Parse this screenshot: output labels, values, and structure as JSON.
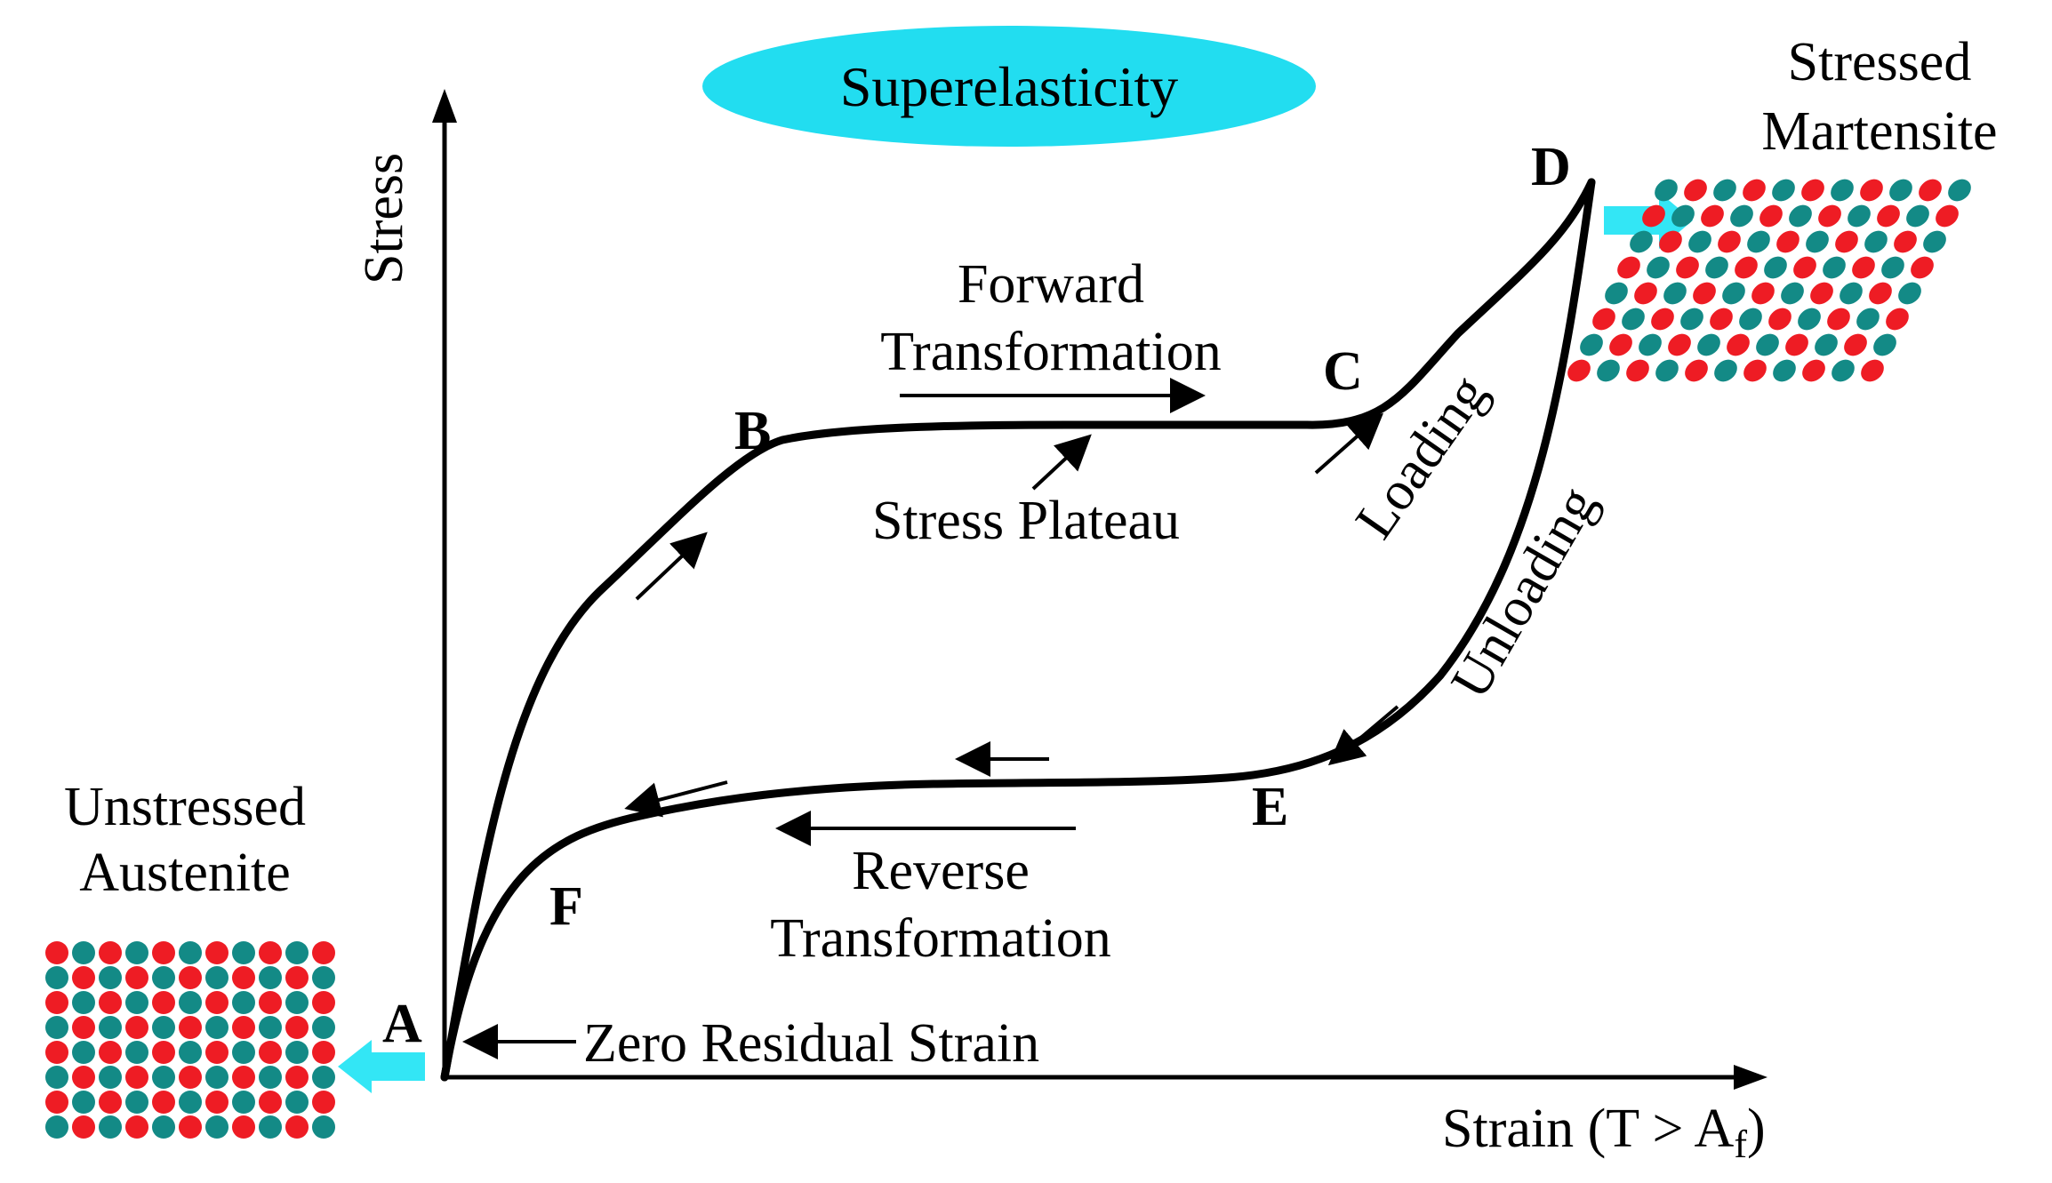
{
  "title": "Superelasticity",
  "axes": {
    "y_label": "Stress",
    "x_label_main": "Strain (T > A",
    "x_label_sub": "f",
    "x_label_close": ")"
  },
  "points": {
    "A": "A",
    "B": "B",
    "C": "C",
    "D": "D",
    "E": "E",
    "F": "F"
  },
  "labels": {
    "forward_line1": "Forward",
    "forward_line2": "Transformation",
    "stress_plateau": "Stress Plateau",
    "loading": "Loading",
    "unloading": "Unloading",
    "reverse_line1": "Reverse",
    "reverse_line2": "Transformation",
    "zero_residual": "Zero Residual Strain",
    "unstressed_line1": "Unstressed",
    "unstressed_line2": "Austenite",
    "stressed_line1": "Stressed",
    "stressed_line2": "Martensite"
  },
  "colors": {
    "title_ellipse": "#22ddf0",
    "cyan_arrow": "#33e6f5",
    "atom_red": "#ee1c24",
    "atom_teal": "#138a86",
    "curve": "#000000"
  },
  "lattices": {
    "austenite": {
      "rows": 8,
      "cols": 11
    },
    "martensite": {
      "rows": 8,
      "cols": 11
    }
  }
}
